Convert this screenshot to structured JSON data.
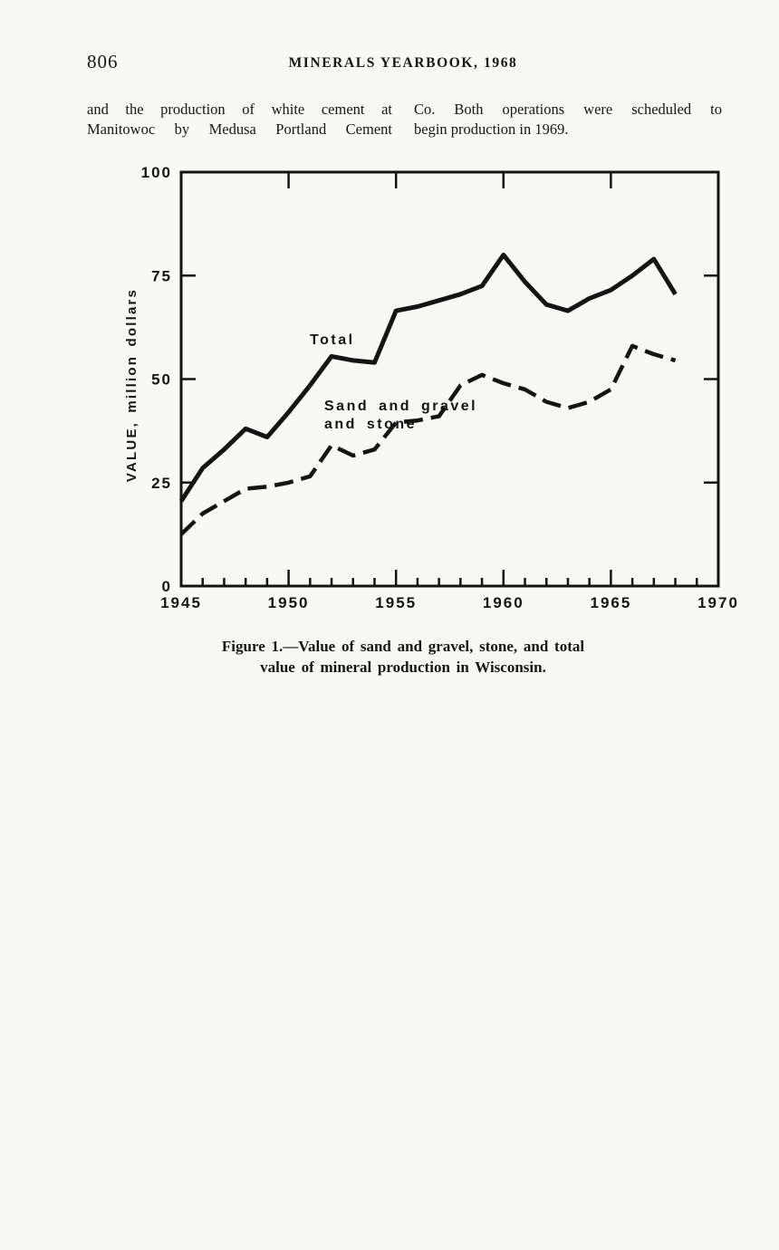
{
  "page": {
    "page_number": "806",
    "running_header": "MINERALS YEARBOOK, 1968",
    "body_text": {
      "left_column_lines": [
        "and the production of white cement at",
        "Manitowoc by Medusa Portland Cement"
      ],
      "right_column_lines": [
        "Co. Both operations were scheduled to",
        "begin production in 1969."
      ]
    },
    "figure_caption": {
      "line1": "Figure 1.—Value of sand and gravel, stone, and total",
      "line2": "value of mineral production in Wisconsin."
    }
  },
  "chart_data": {
    "type": "line",
    "title": "Figure 1. Value of sand and gravel, stone, and total value of mineral production in Wisconsin",
    "xlabel": "",
    "ylabel": "VALUE, million dollars",
    "xlim": [
      1945,
      1970
    ],
    "ylim": [
      0,
      100
    ],
    "y_ticks": [
      0,
      25,
      50,
      75,
      100
    ],
    "x_major_ticks": [
      1945,
      1950,
      1955,
      1960,
      1965,
      1970
    ],
    "x_minor_tick_interval": 1,
    "grid": false,
    "legend_position": "inline-labels",
    "ink_color": "#141414",
    "x": [
      1945,
      1946,
      1947,
      1948,
      1949,
      1950,
      1951,
      1952,
      1953,
      1954,
      1955,
      1956,
      1957,
      1958,
      1959,
      1960,
      1961,
      1962,
      1963,
      1964,
      1965,
      1966,
      1967,
      1968
    ],
    "series": [
      {
        "name": "Total",
        "line_style": "solid",
        "label_lines": [
          "Total"
        ],
        "values": [
          20.5,
          28.5,
          33,
          38,
          36,
          42,
          48.5,
          55.5,
          54.5,
          54,
          66.5,
          67.5,
          69,
          70.5,
          72.5,
          80,
          73.5,
          68,
          66.5,
          69.5,
          71.5,
          75,
          79,
          70.5
        ]
      },
      {
        "name": "Sand and gravel and stone",
        "line_style": "dashed",
        "label_lines": [
          "Sand and gravel",
          "and stone"
        ],
        "values": [
          12.5,
          17.5,
          20.5,
          23.5,
          24,
          25,
          26.5,
          34,
          31.5,
          33,
          39.5,
          40,
          41,
          48.5,
          51,
          49,
          47.5,
          44.5,
          43,
          44.5,
          47.5,
          58,
          56,
          54.5
        ]
      }
    ]
  }
}
